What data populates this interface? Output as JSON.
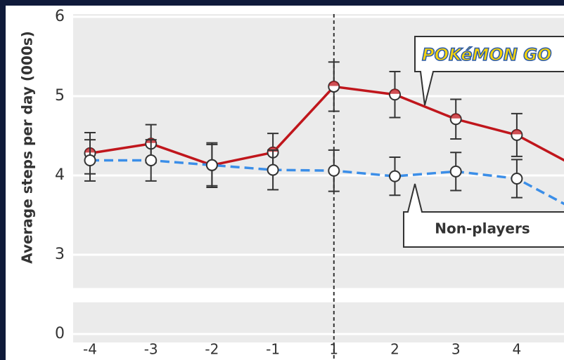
{
  "chart_data": {
    "type": "line",
    "ylabel": "Average steps per day (000s)",
    "categories": [
      "-4",
      "-3",
      "-2",
      "-1",
      "1",
      "2",
      "3",
      "4",
      null
    ],
    "series": [
      {
        "name": "POKéMON GO",
        "color": "#c0161c",
        "dash": false,
        "values": [
          4.28,
          4.4,
          4.13,
          4.29,
          5.12,
          5.02,
          4.71,
          4.51,
          4.1
        ],
        "errors": [
          0.26,
          0.24,
          0.28,
          0.24,
          0.31,
          0.29,
          0.25,
          0.27,
          null
        ]
      },
      {
        "name": "Non-players",
        "color": "#3b8ee8",
        "dash": true,
        "values": [
          4.19,
          4.19,
          4.13,
          4.07,
          4.06,
          3.99,
          4.05,
          3.96,
          3.55
        ],
        "errors": [
          0.26,
          0.26,
          0.26,
          0.25,
          0.26,
          0.24,
          0.24,
          0.24,
          null
        ]
      }
    ],
    "ylim": [
      0,
      6
    ],
    "yticks": [
      0,
      3,
      4,
      5,
      6
    ],
    "y_break": [
      0,
      3
    ],
    "grid": true,
    "vline_category": "1"
  }
}
